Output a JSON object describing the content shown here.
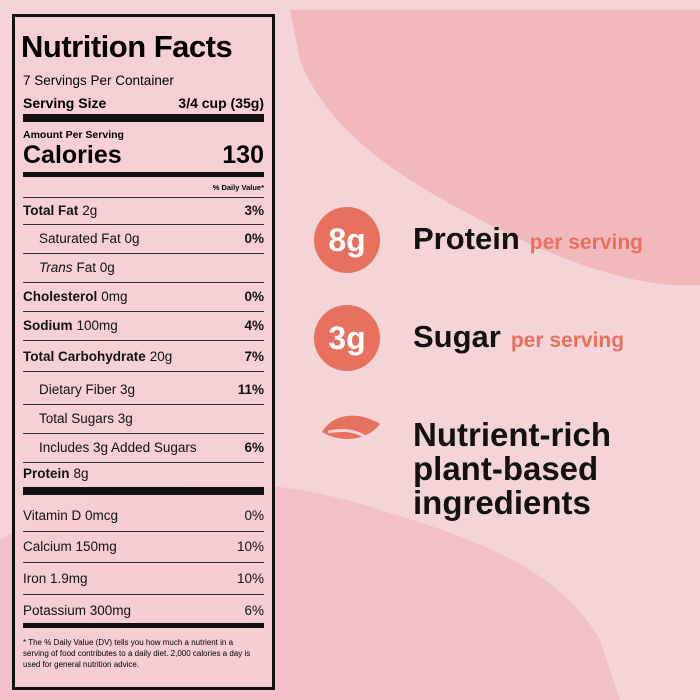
{
  "label": {
    "title": "Nutrition Facts",
    "servings": "7 Servings Per Container",
    "serving_size_label": "Serving Size",
    "serving_size_value": "3/4 cup (35g)",
    "amount_per_serving": "Amount Per Serving",
    "calories_label": "Calories",
    "calories_value": "130",
    "dv_header": "% Daily Value*",
    "rows": [
      {
        "name": "Total Fat",
        "amount": "2g",
        "dv": "3%",
        "bold": true
      },
      {
        "name": "Saturated Fat 0g",
        "dv": "0%",
        "indent": true
      },
      {
        "name": "Trans",
        "amount": "Fat 0g",
        "italic": true,
        "indent": true
      },
      {
        "name": "Cholesterol",
        "amount": "0mg",
        "dv": "0%",
        "bold": true
      },
      {
        "name": "Sodium",
        "amount": "100mg",
        "dv": "4%",
        "bold": true
      },
      {
        "name": "Total Carbohydrate",
        "amount": "20g",
        "dv": "7%",
        "bold": true
      },
      {
        "name": "Dietary Fiber 3g",
        "dv": "11%",
        "indent": true
      },
      {
        "name": "Total Sugars 3g",
        "indent": true
      },
      {
        "name": "Includes 3g Added Sugars",
        "dv": "6%",
        "indent": true
      },
      {
        "name": "Protein",
        "amount": "8g",
        "bold": true
      }
    ],
    "vitamins": [
      {
        "name": "Vitamin D 0mcg",
        "dv": "0%"
      },
      {
        "name": "Calcium 150mg",
        "dv": "10%"
      },
      {
        "name": "Iron 1.9mg",
        "dv": "10%"
      },
      {
        "name": "Potassium 300mg",
        "dv": "6%"
      }
    ],
    "footnote": "* The % Daily Value (DV) tells you how much a nutrient in a serving of food contributes to a daily diet. 2,000 calories a day is used for general nutrition advice."
  },
  "highlights": [
    {
      "badge": "8g",
      "label": "Protein",
      "note": "per serving"
    },
    {
      "badge": "3g",
      "label": "Sugar",
      "note": "per serving"
    }
  ],
  "tagline": [
    "Nutrient-rich",
    "plant-based",
    "ingredients"
  ]
}
